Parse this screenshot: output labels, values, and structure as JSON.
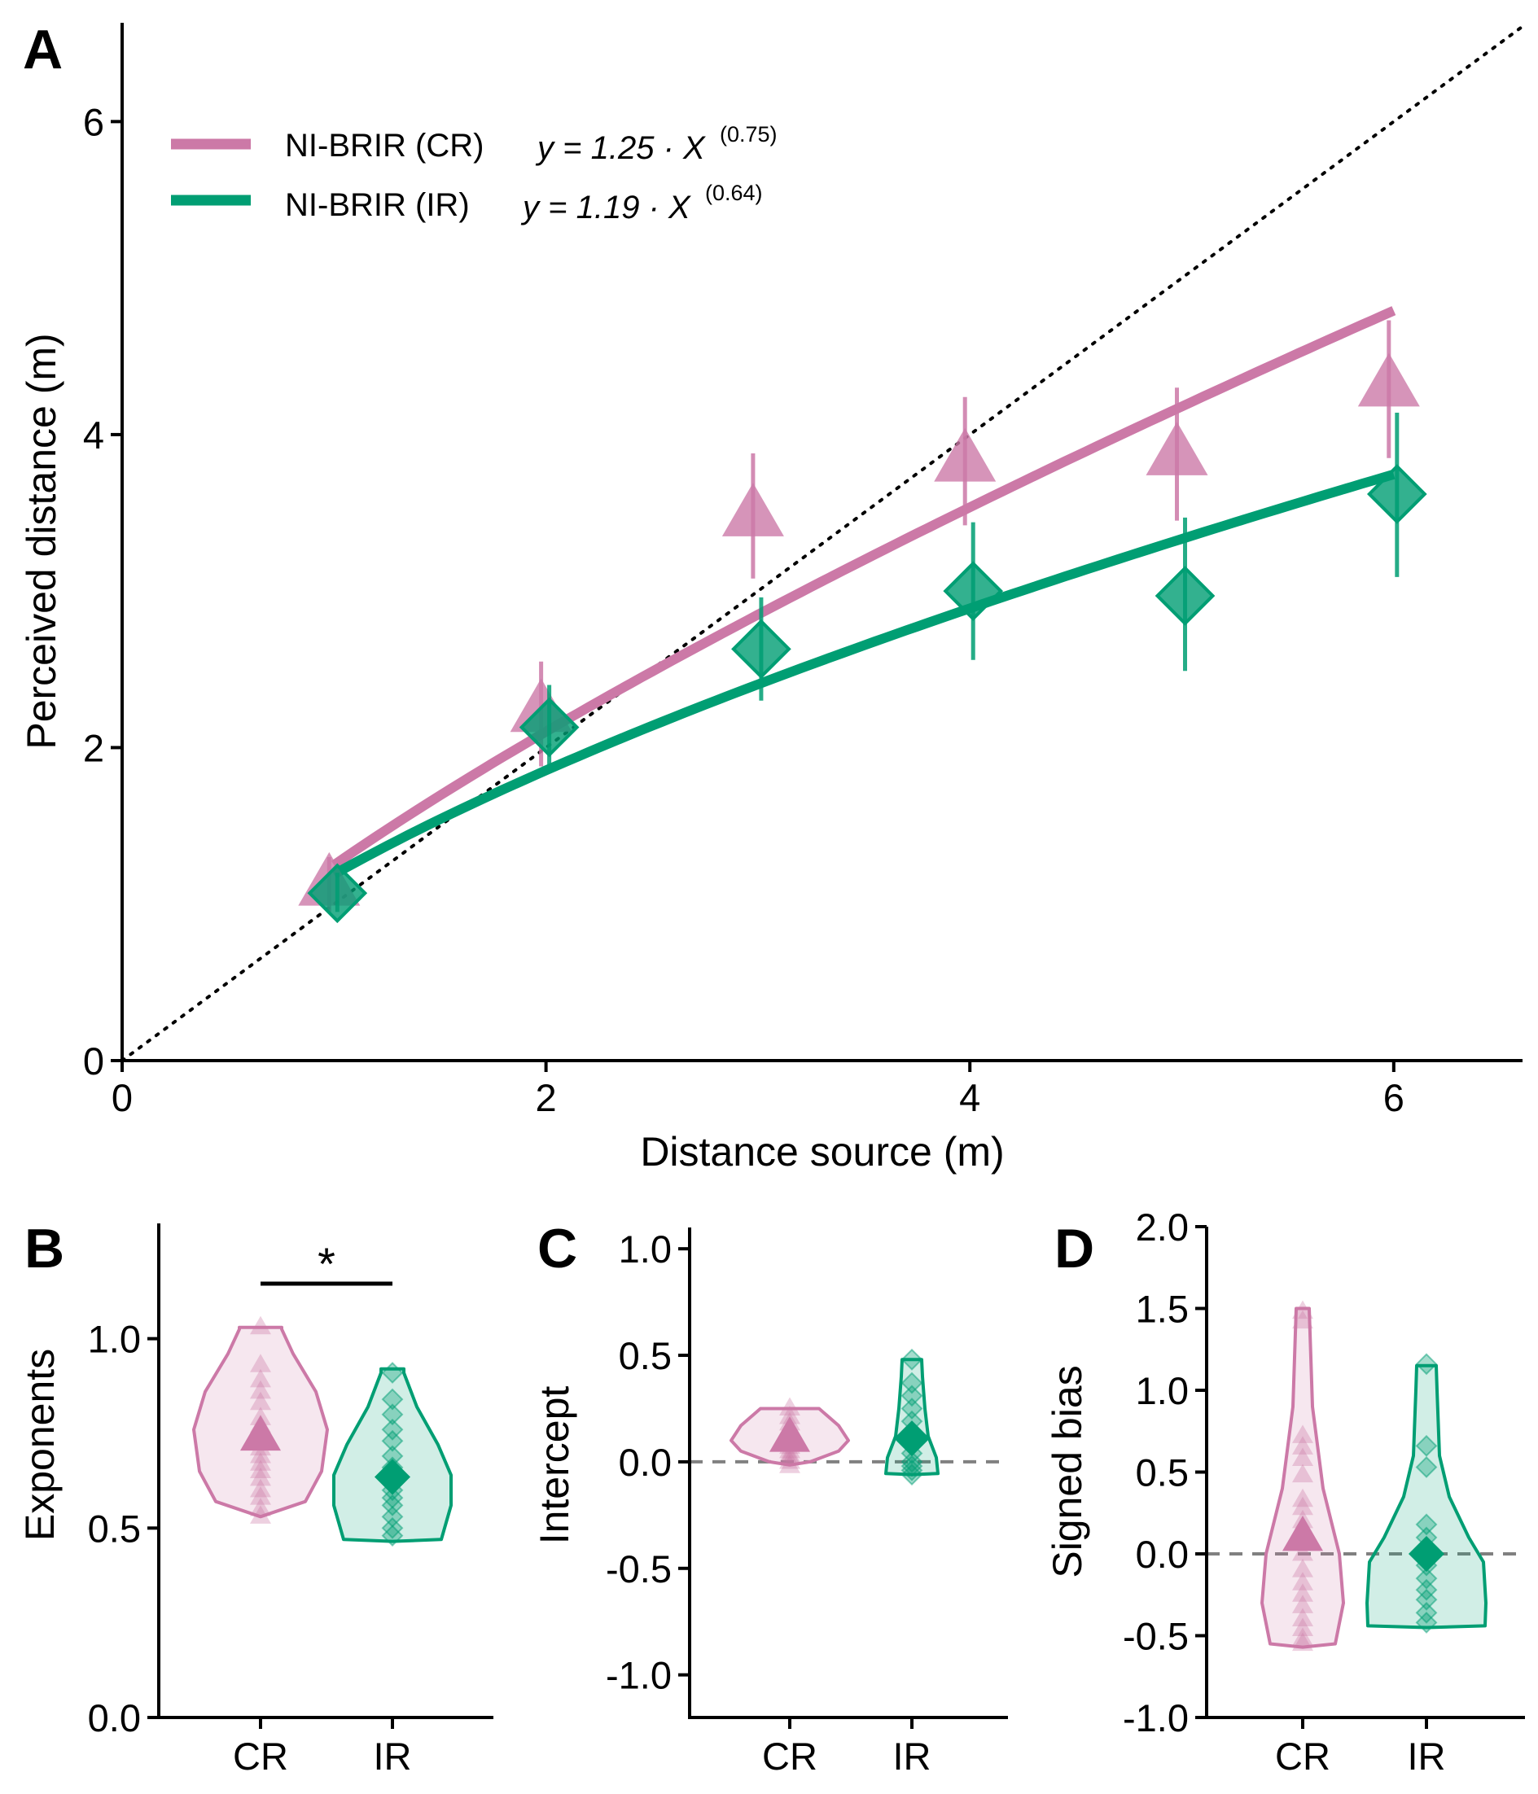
{
  "colors": {
    "cr": "#CC79A7",
    "ir": "#009E73",
    "axis": "#000000",
    "dashed": "#808080"
  },
  "chart_data": [
    {
      "panel": "A",
      "type": "line",
      "xlabel": "Distance source (m)",
      "ylabel": "Perceived distance (m)",
      "xlim": [
        0,
        6.6
      ],
      "ylim": [
        0,
        6.6
      ],
      "xticks": [
        "0",
        "2",
        "4",
        "6"
      ],
      "yticks": [
        "0",
        "2",
        "4",
        "6"
      ],
      "identity_line": true,
      "legend_position": "top-left",
      "series": [
        {
          "name": "NI-BRIR (CR)",
          "equation": "y = 1.25 · X",
          "exponent": "(0.75)",
          "marker": "triangle",
          "color": "#CC79A7",
          "x": [
            1,
            2,
            3,
            4,
            5,
            6
          ],
          "mean": [
            1.12,
            2.23,
            3.48,
            3.83,
            3.87,
            4.31
          ],
          "err_low": [
            0.95,
            1.88,
            3.08,
            3.42,
            3.45,
            3.85
          ],
          "err_high": [
            1.3,
            2.55,
            3.88,
            4.24,
            4.3,
            4.73
          ],
          "fit": {
            "a": 1.25,
            "b": 0.75
          }
        },
        {
          "name": "NI-BRIR (IR)",
          "equation": "y = 1.19 · X",
          "exponent": "(0.64)",
          "marker": "diamond",
          "color": "#009E73",
          "x": [
            1,
            2,
            3,
            4,
            5,
            6
          ],
          "mean": [
            1.07,
            2.13,
            2.63,
            3.0,
            2.97,
            3.62
          ],
          "err_low": [
            0.95,
            1.88,
            2.3,
            2.56,
            2.49,
            3.09
          ],
          "err_high": [
            1.2,
            2.4,
            2.96,
            3.44,
            3.47,
            4.14
          ],
          "fit": {
            "a": 1.19,
            "b": 0.64
          }
        }
      ]
    },
    {
      "panel": "B",
      "type": "violin",
      "ylabel": "Exponents",
      "categories": [
        "CR",
        "IR"
      ],
      "ylim": [
        0,
        1.3
      ],
      "yticks": [
        "0.0",
        "0.5",
        "1.0"
      ],
      "significance": "*",
      "means": [
        0.74,
        0.635
      ],
      "points": [
        [
          1.03,
          0.93,
          0.89,
          0.86,
          0.83,
          0.79,
          0.77,
          0.75,
          0.73,
          0.71,
          0.69,
          0.67,
          0.65,
          0.63,
          0.6,
          0.58,
          0.55,
          0.53
        ],
        [
          0.91,
          0.84,
          0.8,
          0.76,
          0.73,
          0.69,
          0.66,
          0.63,
          0.6,
          0.58,
          0.56,
          0.53,
          0.5,
          0.48
        ]
      ]
    },
    {
      "panel": "C",
      "type": "violin",
      "ylabel": "Intercept",
      "categories": [
        "CR",
        "IR"
      ],
      "ylim": [
        -1.2,
        1.1
      ],
      "yticks": [
        "-1.0",
        "-0.5",
        "0.0",
        "0.5",
        "1.0"
      ],
      "reference_line": 0,
      "means": [
        0.11,
        0.11
      ],
      "points": [
        [
          0.25,
          0.21,
          0.18,
          0.15,
          0.13,
          0.11,
          0.09,
          0.07,
          0.05,
          0.03,
          0.02,
          0.0,
          -0.02
        ],
        [
          0.48,
          0.37,
          0.31,
          0.25,
          0.19,
          0.14,
          0.09,
          0.04,
          0.0,
          -0.02,
          -0.04,
          -0.06
        ]
      ]
    },
    {
      "panel": "D",
      "type": "violin",
      "ylabel": "Signed bias",
      "categories": [
        "CR",
        "IR"
      ],
      "ylim": [
        -1.0,
        2.0
      ],
      "yticks": [
        "-1.0",
        "-0.5",
        "0.0",
        "0.5",
        "1.0",
        "1.5",
        "2.0"
      ],
      "reference_line": 0,
      "means": [
        0.1,
        0.0
      ],
      "points": [
        [
          1.48,
          1.42,
          0.72,
          0.65,
          0.58,
          0.48,
          0.33,
          0.28,
          0.2,
          0.1,
          0.0,
          -0.1,
          -0.18,
          -0.25,
          -0.32,
          -0.4,
          -0.46,
          -0.52,
          -0.55
        ],
        [
          1.16,
          0.66,
          0.53,
          0.18,
          0.1,
          0.02,
          -0.07,
          -0.15,
          -0.22,
          -0.28,
          -0.36,
          -0.42
        ]
      ]
    }
  ]
}
